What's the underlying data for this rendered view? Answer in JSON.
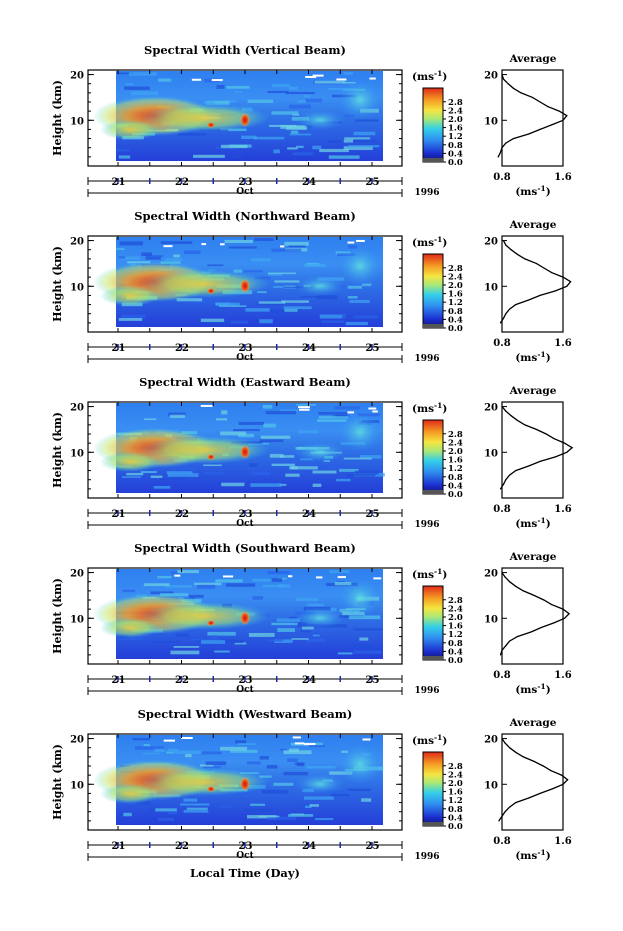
{
  "chart_data": [
    {
      "type": "heatmap",
      "title": "Spectral Width (Vertical Beam)",
      "ylabel": "Height (km)",
      "xlabel": "",
      "x_ticks": [
        "21",
        "22",
        "23",
        "24",
        "25"
      ],
      "x_date_label": "Oct",
      "year": "1996",
      "y_ticks": [
        "10",
        "20"
      ],
      "colorbar_unit": "(ms",
      "colorbar_unit_sup": "-1",
      "colorbar_unit_close": ")",
      "colorbar_ticks": [
        "0.0",
        "0.4",
        "0.8",
        "1.2",
        "1.6",
        "2.0",
        "2.4",
        "2.8"
      ],
      "avg_title": "Average",
      "avg_x_ticks": [
        "0.8",
        "1.6"
      ],
      "avg_y_ticks": [
        "10",
        "20"
      ],
      "avg_unit": "(ms",
      "avg_unit_sup": "-1",
      "avg_unit_close": ")",
      "average_profile": {
        "height_km": [
          2,
          3,
          4,
          5,
          6,
          7,
          8,
          9,
          10,
          11,
          12,
          13,
          14,
          15,
          16,
          17,
          18,
          19,
          20
        ],
        "width_ms": [
          0.75,
          0.78,
          0.8,
          0.85,
          0.95,
          1.15,
          1.3,
          1.45,
          1.6,
          1.65,
          1.55,
          1.4,
          1.3,
          1.2,
          1.05,
          0.95,
          0.88,
          0.82,
          0.8
        ]
      }
    },
    {
      "type": "heatmap",
      "title": "Spectral Width (Northward Beam)",
      "ylabel": "Height (km)",
      "xlabel": "",
      "x_ticks": [
        "21",
        "22",
        "23",
        "24",
        "25"
      ],
      "x_date_label": "Oct",
      "year": "1996",
      "y_ticks": [
        "10",
        "20"
      ],
      "colorbar_unit": "(ms",
      "colorbar_unit_sup": "-1",
      "colorbar_unit_close": ")",
      "colorbar_ticks": [
        "0.0",
        "0.4",
        "0.8",
        "1.2",
        "1.6",
        "2.0",
        "2.4",
        "2.8"
      ],
      "avg_title": "Average",
      "avg_x_ticks": [
        "0.8",
        "1.6"
      ],
      "avg_y_ticks": [
        "10",
        "20"
      ],
      "avg_unit": "(ms",
      "avg_unit_sup": "-1",
      "avg_unit_close": ")",
      "average_profile": {
        "height_km": [
          2,
          3,
          4,
          5,
          6,
          7,
          8,
          9,
          10,
          11,
          12,
          13,
          14,
          15,
          16,
          17,
          18,
          19,
          20
        ],
        "width_ms": [
          0.78,
          0.82,
          0.85,
          0.9,
          0.98,
          1.15,
          1.3,
          1.5,
          1.65,
          1.7,
          1.6,
          1.45,
          1.35,
          1.25,
          1.1,
          1.0,
          0.92,
          0.85,
          0.82
        ]
      }
    },
    {
      "type": "heatmap",
      "title": "Spectral Width (Eastward Beam)",
      "ylabel": "Height (km)",
      "xlabel": "",
      "x_ticks": [
        "21",
        "22",
        "23",
        "24",
        "25"
      ],
      "x_date_label": "Oct",
      "year": "1996",
      "y_ticks": [
        "10",
        "20"
      ],
      "colorbar_unit": "(ms",
      "colorbar_unit_sup": "-1",
      "colorbar_unit_close": ")",
      "colorbar_ticks": [
        "0.0",
        "0.4",
        "0.8",
        "1.2",
        "1.6",
        "2.0",
        "2.4",
        "2.8"
      ],
      "avg_title": "Average",
      "avg_x_ticks": [
        "0.8",
        "1.6"
      ],
      "avg_y_ticks": [
        "10",
        "20"
      ],
      "avg_unit": "(ms",
      "avg_unit_sup": "-1",
      "avg_unit_close": ")",
      "average_profile": {
        "height_km": [
          2,
          3,
          4,
          5,
          6,
          7,
          8,
          9,
          10,
          11,
          12,
          13,
          14,
          15,
          16,
          17,
          18,
          19,
          20
        ],
        "width_ms": [
          0.78,
          0.82,
          0.85,
          0.9,
          0.98,
          1.15,
          1.3,
          1.5,
          1.65,
          1.72,
          1.62,
          1.48,
          1.38,
          1.25,
          1.1,
          1.0,
          0.92,
          0.85,
          0.8
        ]
      }
    },
    {
      "type": "heatmap",
      "title": "Spectral Width (Southward Beam)",
      "ylabel": "Height (km)",
      "xlabel": "",
      "x_ticks": [
        "21",
        "22",
        "23",
        "24",
        "25"
      ],
      "x_date_label": "Oct",
      "year": "1996",
      "y_ticks": [
        "10",
        "20"
      ],
      "colorbar_unit": "(ms",
      "colorbar_unit_sup": "-1",
      "colorbar_unit_close": ")",
      "colorbar_ticks": [
        "0.0",
        "0.4",
        "0.8",
        "1.2",
        "1.6",
        "2.0",
        "2.4",
        "2.8"
      ],
      "avg_title": "Average",
      "avg_x_ticks": [
        "0.8",
        "1.6"
      ],
      "avg_y_ticks": [
        "10",
        "20"
      ],
      "avg_unit": "(ms",
      "avg_unit_sup": "-1",
      "avg_unit_close": ")",
      "average_profile": {
        "height_km": [
          2,
          3,
          4,
          5,
          6,
          7,
          8,
          9,
          10,
          11,
          12,
          13,
          14,
          15,
          16,
          17,
          18,
          19,
          20
        ],
        "width_ms": [
          0.78,
          0.8,
          0.85,
          0.9,
          1.0,
          1.18,
          1.32,
          1.48,
          1.62,
          1.68,
          1.6,
          1.45,
          1.35,
          1.22,
          1.08,
          0.98,
          0.9,
          0.84,
          0.8
        ]
      }
    },
    {
      "type": "heatmap",
      "title": "Spectral Width (Westward Beam)",
      "ylabel": "Height (km)",
      "xlabel": "Local Time (Day)",
      "x_ticks": [
        "21",
        "22",
        "23",
        "24",
        "25"
      ],
      "x_date_label": "Oct",
      "year": "1996",
      "y_ticks": [
        "10",
        "20"
      ],
      "colorbar_unit": "(ms",
      "colorbar_unit_sup": "-1",
      "colorbar_unit_close": ")",
      "colorbar_ticks": [
        "0.0",
        "0.4",
        "0.8",
        "1.2",
        "1.6",
        "2.0",
        "2.4",
        "2.8"
      ],
      "avg_title": "Average",
      "avg_x_ticks": [
        "0.8",
        "1.6"
      ],
      "avg_y_ticks": [
        "10",
        "20"
      ],
      "avg_unit": "(ms",
      "avg_unit_sup": "-1",
      "avg_unit_close": ")",
      "average_profile": {
        "height_km": [
          2,
          3,
          4,
          5,
          6,
          7,
          8,
          9,
          10,
          11,
          12,
          13,
          14,
          15,
          16,
          17,
          18,
          19,
          20
        ],
        "width_ms": [
          0.76,
          0.8,
          0.84,
          0.9,
          0.98,
          1.15,
          1.3,
          1.46,
          1.6,
          1.66,
          1.58,
          1.44,
          1.34,
          1.22,
          1.08,
          0.98,
          0.9,
          0.84,
          0.8
        ]
      }
    }
  ]
}
